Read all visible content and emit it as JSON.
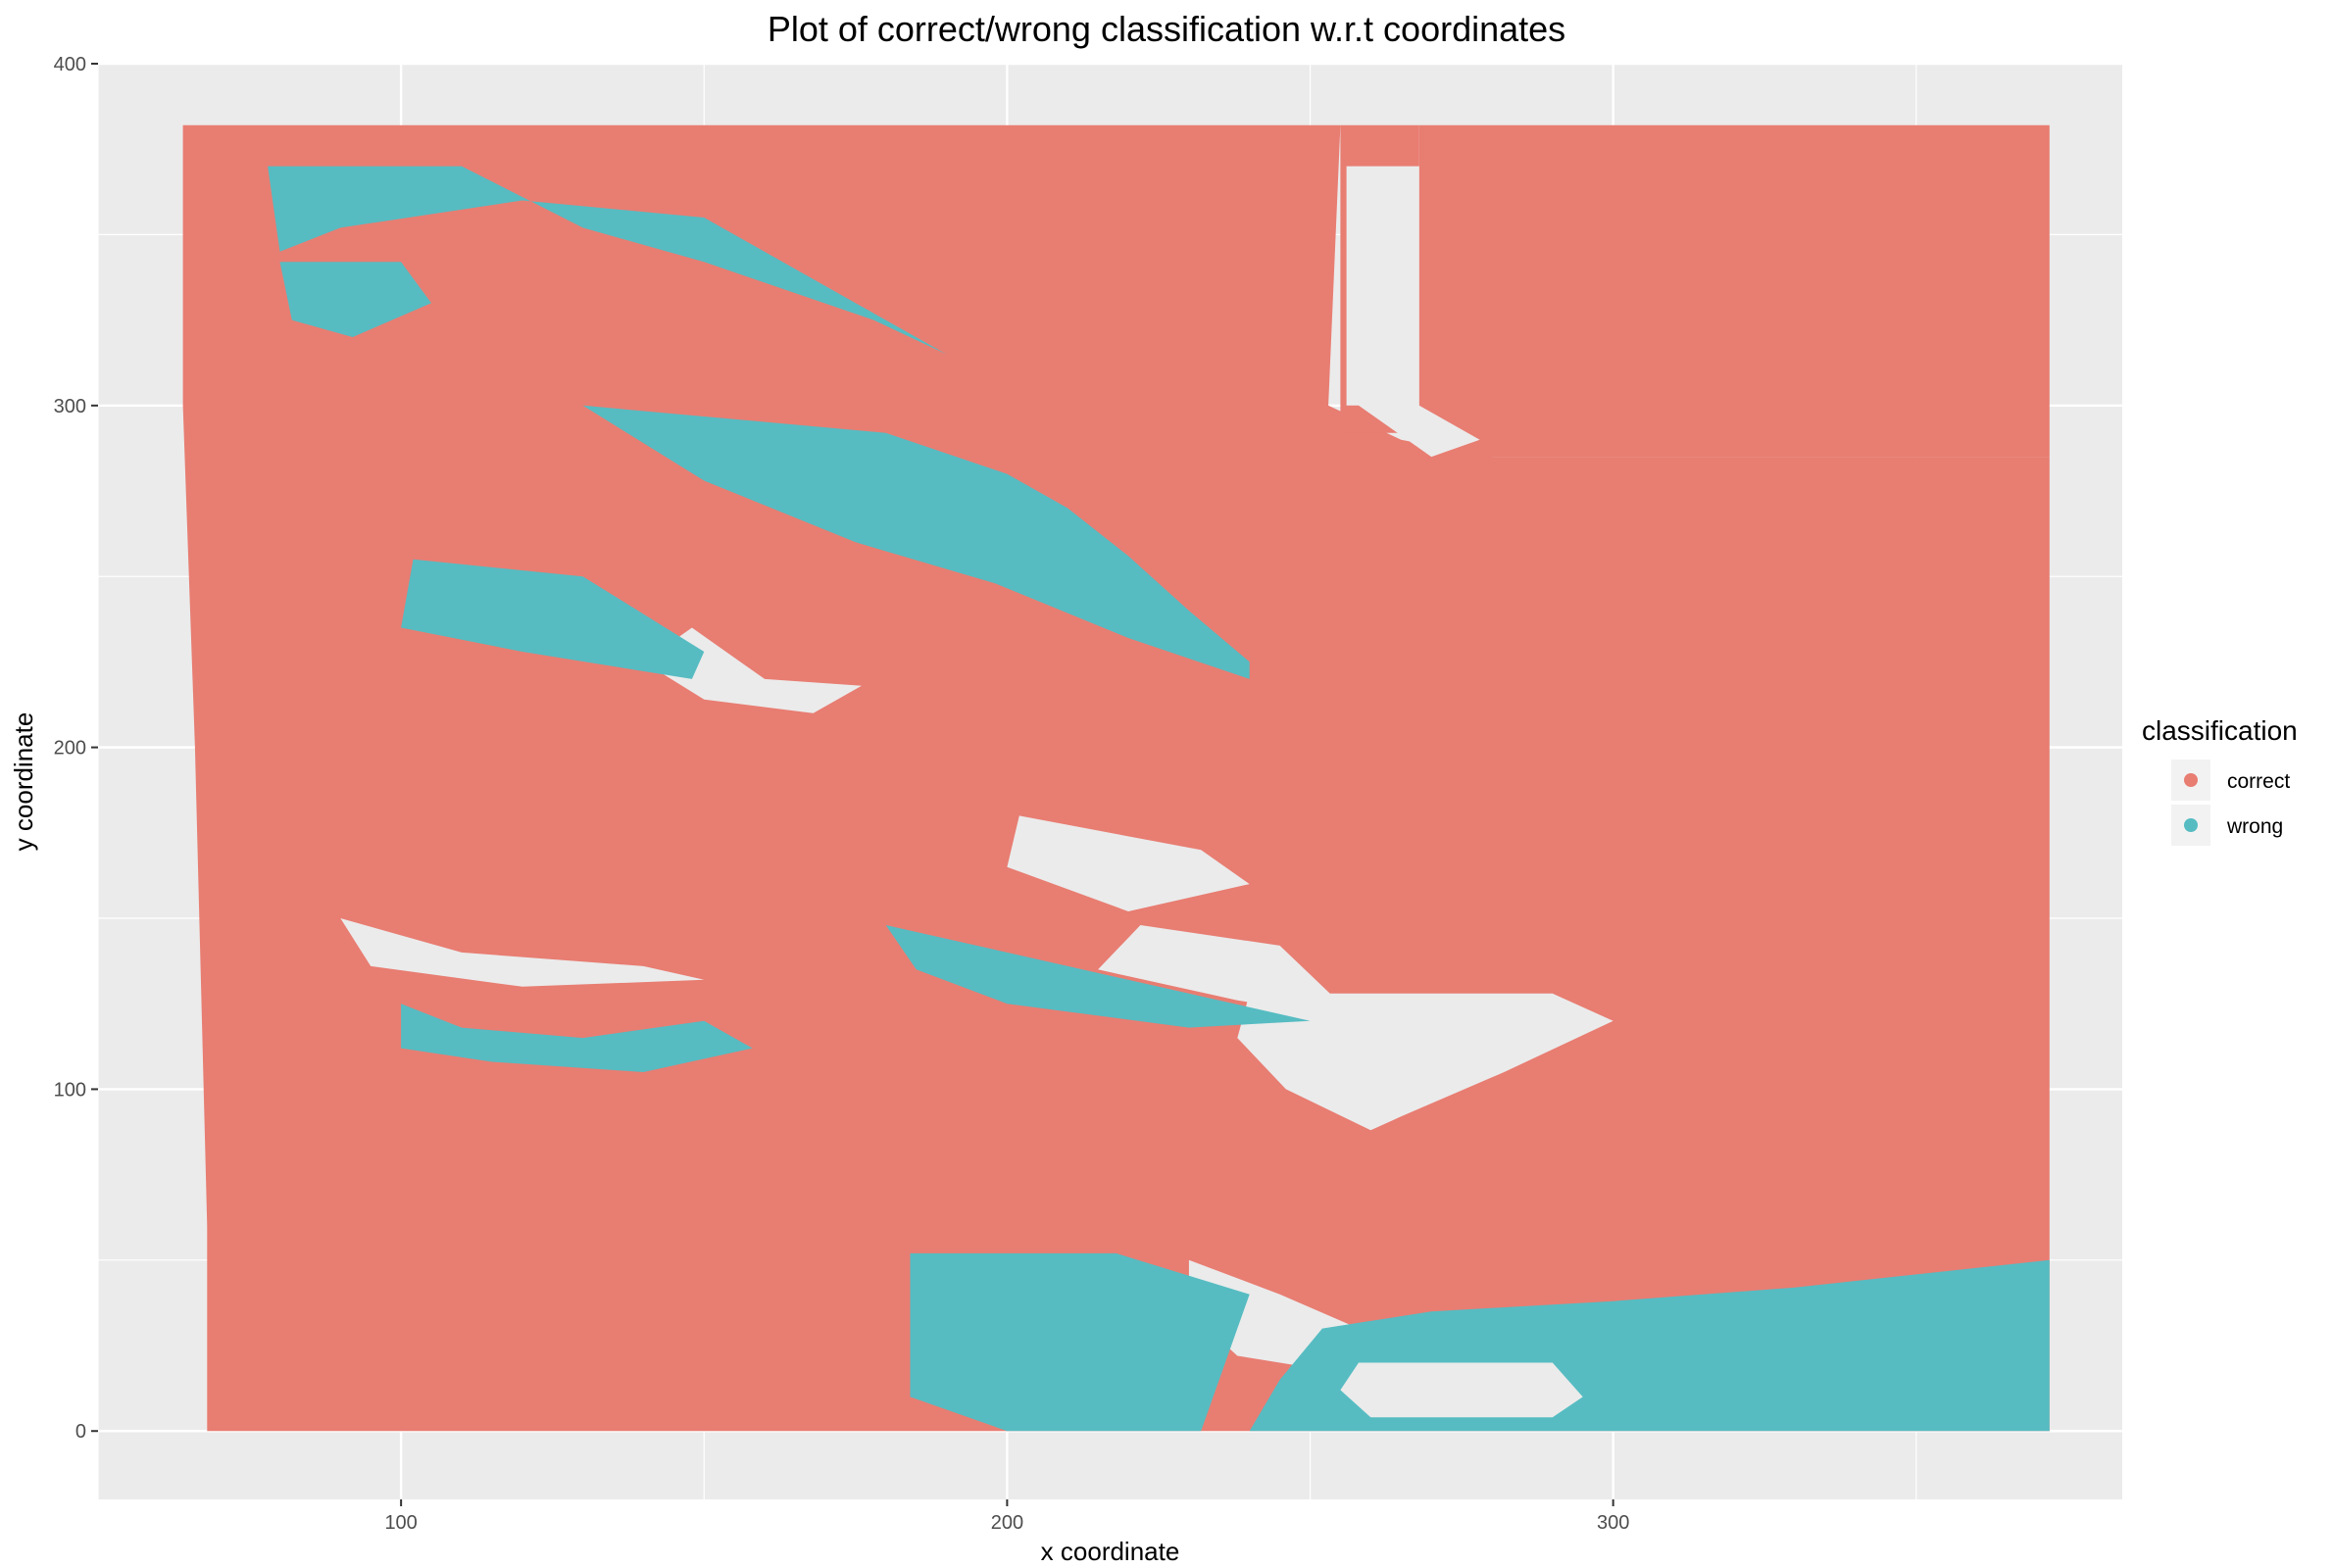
{
  "chart_data": {
    "type": "scatter",
    "title": "Plot of correct/wrong classification w.r.t coordinates",
    "xlabel": "x coordinate",
    "ylabel": "y coordinate",
    "xlim": [
      50,
      384
    ],
    "ylim": [
      -20,
      400
    ],
    "xticks": [
      100,
      200,
      300
    ],
    "yticks": [
      0,
      100,
      200,
      300,
      400
    ],
    "grid": true,
    "legend": {
      "title": "classification",
      "placement": "right",
      "entries": [
        {
          "label": "correct",
          "color": "#e87d72"
        },
        {
          "label": "wrong",
          "color": "#56bcc2"
        }
      ]
    },
    "series": [
      {
        "name": "correct",
        "color": "#e87d72",
        "regions": [
          [
            [
              64,
              382
            ],
            [
              198,
              382
            ],
            [
              198,
              0
            ],
            [
              68,
              0
            ],
            [
              68,
              60
            ],
            [
              66,
              200
            ],
            [
              64,
              300
            ]
          ],
          [
            [
              198,
              382
            ],
            [
              255,
              382
            ],
            [
              253,
              300
            ],
            [
              265,
              290
            ],
            [
              280,
              285
            ],
            [
              372,
              285
            ],
            [
              372,
              0
            ],
            [
              198,
              0
            ]
          ],
          [
            [
              255,
              382
            ],
            [
              268,
              382
            ],
            [
              268,
              292
            ],
            [
              255,
              292
            ]
          ],
          [
            [
              268,
              382
            ],
            [
              372,
              382
            ],
            [
              372,
              285
            ],
            [
              268,
              285
            ]
          ]
        ],
        "holes": [
          [
            [
              256,
              370
            ],
            [
              268,
              370
            ],
            [
              268,
              300
            ],
            [
              278,
              290
            ],
            [
              270,
              285
            ],
            [
              258,
              300
            ],
            [
              256,
              300
            ]
          ],
          [
            [
              148,
              235
            ],
            [
              160,
              220
            ],
            [
              176,
              218
            ],
            [
              168,
              210
            ],
            [
              150,
              214
            ],
            [
              140,
              225
            ]
          ],
          [
            [
              202,
              180
            ],
            [
              232,
              170
            ],
            [
              240,
              160
            ],
            [
              220,
              152
            ],
            [
              200,
              165
            ]
          ],
          [
            [
              222,
              148
            ],
            [
              245,
              142
            ],
            [
              258,
              120
            ],
            [
              238,
              126
            ],
            [
              215,
              135
            ]
          ],
          [
            [
              240,
              128
            ],
            [
              290,
              128
            ],
            [
              300,
              120
            ],
            [
              282,
              105
            ],
            [
              265,
              92
            ],
            [
              260,
              88
            ],
            [
              246,
              100
            ],
            [
              238,
              115
            ]
          ],
          [
            [
              90,
              150
            ],
            [
              110,
              140
            ],
            [
              140,
              136
            ],
            [
              150,
              132
            ],
            [
              120,
              130
            ],
            [
              95,
              136
            ]
          ],
          [
            [
              230,
              50
            ],
            [
              245,
              40
            ],
            [
              258,
              30
            ],
            [
              252,
              18
            ],
            [
              238,
              22
            ],
            [
              230,
              35
            ]
          ]
        ]
      },
      {
        "name": "wrong",
        "color": "#56bcc2",
        "regions": [
          [
            [
              78,
              370
            ],
            [
              110,
              370
            ],
            [
              130,
              352
            ],
            [
              150,
              342
            ],
            [
              178,
              325
            ],
            [
              190,
              315
            ],
            [
              175,
              330
            ],
            [
              150,
              355
            ],
            [
              120,
              360
            ],
            [
              90,
              352
            ],
            [
              80,
              345
            ]
          ],
          [
            [
              80,
              342
            ],
            [
              100,
              342
            ],
            [
              105,
              330
            ],
            [
              92,
              320
            ],
            [
              82,
              325
            ]
          ],
          [
            [
              102,
              255
            ],
            [
              130,
              250
            ],
            [
              150,
              228
            ],
            [
              148,
              220
            ],
            [
              120,
              228
            ],
            [
              100,
              235
            ]
          ],
          [
            [
              130,
              300
            ],
            [
              180,
              292
            ],
            [
              200,
              280
            ],
            [
              210,
              270
            ],
            [
              220,
              256
            ],
            [
              230,
              240
            ],
            [
              240,
              225
            ],
            [
              240,
              220
            ],
            [
              220,
              232
            ],
            [
              198,
              248
            ],
            [
              175,
              260
            ],
            [
              150,
              278
            ]
          ],
          [
            [
              100,
              125
            ],
            [
              110,
              118
            ],
            [
              130,
              115
            ],
            [
              150,
              120
            ],
            [
              158,
              112
            ],
            [
              140,
              105
            ],
            [
              115,
              108
            ],
            [
              100,
              112
            ]
          ],
          [
            [
              184,
              52
            ],
            [
              218,
              52
            ],
            [
              240,
              40
            ],
            [
              232,
              0
            ],
            [
              200,
              0
            ],
            [
              184,
              10
            ]
          ],
          [
            [
              252,
              30
            ],
            [
              270,
              35
            ],
            [
              300,
              38
            ],
            [
              330,
              42
            ],
            [
              372,
              50
            ],
            [
              372,
              0
            ],
            [
              240,
              0
            ],
            [
              245,
              15
            ]
          ],
          [
            [
              180,
              148
            ],
            [
              200,
              140
            ],
            [
              230,
              128
            ],
            [
              250,
              120
            ],
            [
              230,
              118
            ],
            [
              200,
              125
            ],
            [
              185,
              135
            ]
          ]
        ],
        "holes": [
          [
            [
              258,
              20
            ],
            [
              290,
              20
            ],
            [
              295,
              10
            ],
            [
              290,
              4
            ],
            [
              260,
              4
            ],
            [
              255,
              12
            ]
          ]
        ]
      }
    ]
  }
}
